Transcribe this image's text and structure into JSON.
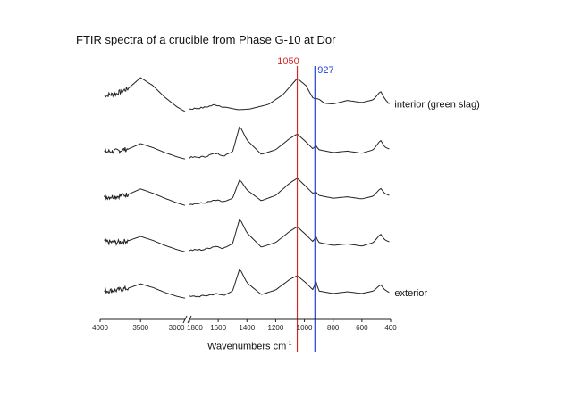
{
  "chart_data": {
    "type": "line",
    "title": "FTIR spectra of a crucible from Phase G-10 at Dor",
    "xlabel": "Wavenumbers cm",
    "xlabel_superscript": "-1",
    "ylabel": "",
    "x_axis_reversed": true,
    "axis_break": true,
    "x_segments": [
      {
        "xlim": [
          4000,
          2950
        ],
        "ticks": [
          4000,
          3500,
          3000
        ]
      },
      {
        "xlim": [
          1800,
          400
        ],
        "ticks": [
          1800,
          1600,
          1400,
          1200,
          1000,
          800,
          600,
          400
        ]
      }
    ],
    "tick_labels": [
      "4000",
      "3500",
      "3000",
      "1800",
      "1600",
      "1400",
      "1200",
      "1000",
      "800",
      "600",
      "400"
    ],
    "vertical_markers": [
      {
        "label": "1050",
        "x": 1050,
        "color": "#d62728"
      },
      {
        "label": "927",
        "x": 927,
        "color": "#1f3fd6"
      }
    ],
    "series": [
      {
        "name": "interior (green slag)",
        "points_high": [
          [
            3950,
            0.5
          ],
          [
            3800,
            0.55
          ],
          [
            3650,
            0.7
          ],
          [
            3500,
            1.0
          ],
          [
            3350,
            0.78
          ],
          [
            3200,
            0.45
          ],
          [
            3050,
            0.18
          ],
          [
            2950,
            0.05
          ]
        ],
        "points_low": [
          [
            1800,
            0.12
          ],
          [
            1700,
            0.16
          ],
          [
            1620,
            0.24
          ],
          [
            1560,
            0.18
          ],
          [
            1460,
            0.1
          ],
          [
            1380,
            0.12
          ],
          [
            1250,
            0.25
          ],
          [
            1150,
            0.52
          ],
          [
            1050,
            0.98
          ],
          [
            990,
            0.78
          ],
          [
            940,
            0.42
          ],
          [
            900,
            0.4
          ],
          [
            860,
            0.28
          ],
          [
            800,
            0.26
          ],
          [
            700,
            0.36
          ],
          [
            600,
            0.3
          ],
          [
            520,
            0.38
          ],
          [
            470,
            0.62
          ],
          [
            440,
            0.4
          ],
          [
            410,
            0.26
          ]
        ]
      },
      {
        "name": "",
        "points_high": [
          [
            3950,
            0.22
          ],
          [
            3800,
            0.24
          ],
          [
            3650,
            0.3
          ],
          [
            3500,
            0.45
          ],
          [
            3350,
            0.34
          ],
          [
            3200,
            0.2
          ],
          [
            3050,
            0.08
          ],
          [
            2950,
            0.02
          ]
        ],
        "points_low": [
          [
            1800,
            0.06
          ],
          [
            1700,
            0.08
          ],
          [
            1620,
            0.18
          ],
          [
            1560,
            0.12
          ],
          [
            1500,
            0.22
          ],
          [
            1450,
            0.95
          ],
          [
            1400,
            0.55
          ],
          [
            1300,
            0.15
          ],
          [
            1200,
            0.28
          ],
          [
            1100,
            0.6
          ],
          [
            1050,
            0.72
          ],
          [
            990,
            0.5
          ],
          [
            940,
            0.3
          ],
          [
            920,
            0.4
          ],
          [
            900,
            0.28
          ],
          [
            800,
            0.2
          ],
          [
            700,
            0.24
          ],
          [
            600,
            0.18
          ],
          [
            520,
            0.28
          ],
          [
            470,
            0.55
          ],
          [
            440,
            0.35
          ],
          [
            410,
            0.3
          ]
        ]
      },
      {
        "name": "",
        "points_high": [
          [
            3950,
            0.25
          ],
          [
            3800,
            0.27
          ],
          [
            3650,
            0.33
          ],
          [
            3500,
            0.48
          ],
          [
            3350,
            0.36
          ],
          [
            3200,
            0.22
          ],
          [
            3050,
            0.09
          ],
          [
            2950,
            0.02
          ]
        ],
        "points_low": [
          [
            1800,
            0.06
          ],
          [
            1700,
            0.08
          ],
          [
            1620,
            0.16
          ],
          [
            1560,
            0.12
          ],
          [
            1500,
            0.22
          ],
          [
            1450,
            0.75
          ],
          [
            1400,
            0.45
          ],
          [
            1300,
            0.15
          ],
          [
            1200,
            0.3
          ],
          [
            1100,
            0.65
          ],
          [
            1050,
            0.78
          ],
          [
            990,
            0.55
          ],
          [
            940,
            0.35
          ],
          [
            920,
            0.4
          ],
          [
            900,
            0.3
          ],
          [
            800,
            0.22
          ],
          [
            700,
            0.26
          ],
          [
            600,
            0.2
          ],
          [
            520,
            0.28
          ],
          [
            470,
            0.5
          ],
          [
            440,
            0.35
          ],
          [
            410,
            0.3
          ]
        ]
      },
      {
        "name": "",
        "points_high": [
          [
            3950,
            0.3
          ],
          [
            3800,
            0.28
          ],
          [
            3650,
            0.33
          ],
          [
            3500,
            0.45
          ],
          [
            3350,
            0.34
          ],
          [
            3200,
            0.2
          ],
          [
            3050,
            0.08
          ],
          [
            2950,
            0.02
          ]
        ],
        "points_low": [
          [
            1800,
            0.06
          ],
          [
            1700,
            0.08
          ],
          [
            1620,
            0.18
          ],
          [
            1560,
            0.12
          ],
          [
            1500,
            0.25
          ],
          [
            1450,
            0.95
          ],
          [
            1400,
            0.55
          ],
          [
            1300,
            0.15
          ],
          [
            1200,
            0.28
          ],
          [
            1100,
            0.6
          ],
          [
            1050,
            0.72
          ],
          [
            990,
            0.5
          ],
          [
            940,
            0.3
          ],
          [
            920,
            0.45
          ],
          [
            900,
            0.28
          ],
          [
            800,
            0.2
          ],
          [
            700,
            0.24
          ],
          [
            600,
            0.18
          ],
          [
            520,
            0.28
          ],
          [
            470,
            0.52
          ],
          [
            440,
            0.35
          ],
          [
            410,
            0.3
          ]
        ]
      },
      {
        "name": "exterior",
        "points_high": [
          [
            3950,
            0.22
          ],
          [
            3800,
            0.24
          ],
          [
            3650,
            0.3
          ],
          [
            3500,
            0.42
          ],
          [
            3350,
            0.32
          ],
          [
            3200,
            0.18
          ],
          [
            3050,
            0.07
          ],
          [
            2950,
            0.02
          ]
        ],
        "points_low": [
          [
            1800,
            0.06
          ],
          [
            1700,
            0.08
          ],
          [
            1620,
            0.14
          ],
          [
            1560,
            0.1
          ],
          [
            1500,
            0.22
          ],
          [
            1450,
            0.85
          ],
          [
            1400,
            0.45
          ],
          [
            1300,
            0.12
          ],
          [
            1200,
            0.25
          ],
          [
            1100,
            0.55
          ],
          [
            1050,
            0.65
          ],
          [
            990,
            0.45
          ],
          [
            940,
            0.25
          ],
          [
            920,
            0.5
          ],
          [
            900,
            0.22
          ],
          [
            800,
            0.15
          ],
          [
            700,
            0.2
          ],
          [
            600,
            0.15
          ],
          [
            520,
            0.22
          ],
          [
            470,
            0.4
          ],
          [
            440,
            0.25
          ],
          [
            410,
            0.18
          ]
        ]
      }
    ],
    "grid": false,
    "legend": "none"
  }
}
